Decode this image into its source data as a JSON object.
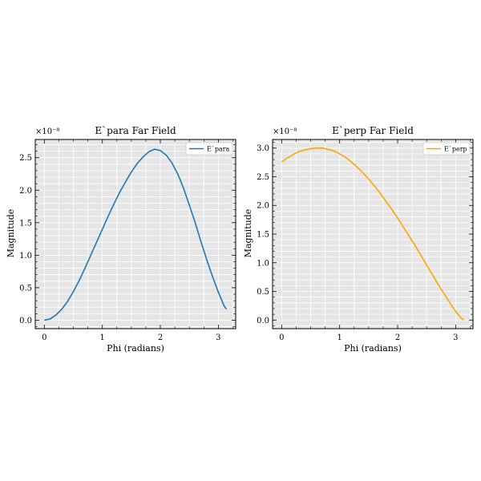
{
  "chart_data": [
    {
      "type": "line",
      "title": "E`para Far Field",
      "xlabel": "Phi (radians)",
      "ylabel": "Magnitude",
      "scale_label": "×10⁻⁸",
      "xlim": [
        -0.157,
        3.299
      ],
      "ylim": [
        -0.13,
        2.78
      ],
      "xticks": [
        0,
        1,
        2,
        3
      ],
      "yticks": [
        0.0,
        0.5,
        1.0,
        1.5,
        2.0,
        2.5
      ],
      "ytick_labels": [
        "0.0",
        "0.5",
        "1.0",
        "1.5",
        "2.0",
        "2.5"
      ],
      "grid": true,
      "legend_position": "top-right",
      "series": [
        {
          "name": "E`para",
          "color": "#1f77b4",
          "x": [
            0.0,
            0.1,
            0.2,
            0.3,
            0.4,
            0.5,
            0.6,
            0.7,
            0.8,
            0.9,
            1.0,
            1.1,
            1.2,
            1.3,
            1.4,
            1.5,
            1.6,
            1.7,
            1.8,
            1.9,
            2.0,
            2.1,
            2.2,
            2.3,
            2.4,
            2.5,
            2.6,
            2.7,
            2.8,
            2.9,
            3.0,
            3.1,
            3.14
          ],
          "values": [
            0.0,
            0.02,
            0.08,
            0.17,
            0.29,
            0.44,
            0.61,
            0.8,
            1.0,
            1.2,
            1.4,
            1.6,
            1.79,
            1.97,
            2.13,
            2.28,
            2.41,
            2.51,
            2.59,
            2.63,
            2.61,
            2.54,
            2.42,
            2.25,
            2.03,
            1.77,
            1.5,
            1.21,
            0.93,
            0.67,
            0.43,
            0.22,
            0.17
          ]
        }
      ]
    },
    {
      "type": "line",
      "title": "E`perp Far Field",
      "xlabel": "Phi (radians)",
      "ylabel": "Magnitude",
      "scale_label": "×10⁻⁸",
      "xlim": [
        -0.157,
        3.299
      ],
      "ylim": [
        -0.15,
        3.15
      ],
      "xticks": [
        0,
        1,
        2,
        3
      ],
      "yticks": [
        0.0,
        0.5,
        1.0,
        1.5,
        2.0,
        2.5,
        3.0
      ],
      "ytick_labels": [
        "0.0",
        "0.5",
        "1.0",
        "1.5",
        "2.0",
        "2.5",
        "3.0"
      ],
      "grid": true,
      "legend_position": "top-right",
      "series": [
        {
          "name": "E`perp",
          "color": "#ffa500",
          "x": [
            0.0,
            0.1,
            0.2,
            0.3,
            0.4,
            0.5,
            0.6,
            0.7,
            0.8,
            0.9,
            1.0,
            1.1,
            1.2,
            1.3,
            1.4,
            1.5,
            1.6,
            1.7,
            1.8,
            1.9,
            2.0,
            2.1,
            2.2,
            2.3,
            2.4,
            2.5,
            2.6,
            2.7,
            2.8,
            2.9,
            3.0,
            3.1,
            3.14
          ],
          "values": [
            2.76,
            2.83,
            2.89,
            2.94,
            2.97,
            2.99,
            3.0,
            3.0,
            2.98,
            2.95,
            2.9,
            2.84,
            2.76,
            2.67,
            2.57,
            2.46,
            2.34,
            2.21,
            2.07,
            1.93,
            1.78,
            1.62,
            1.46,
            1.3,
            1.13,
            0.96,
            0.79,
            0.62,
            0.46,
            0.3,
            0.15,
            0.03,
            0.0
          ]
        }
      ]
    }
  ]
}
